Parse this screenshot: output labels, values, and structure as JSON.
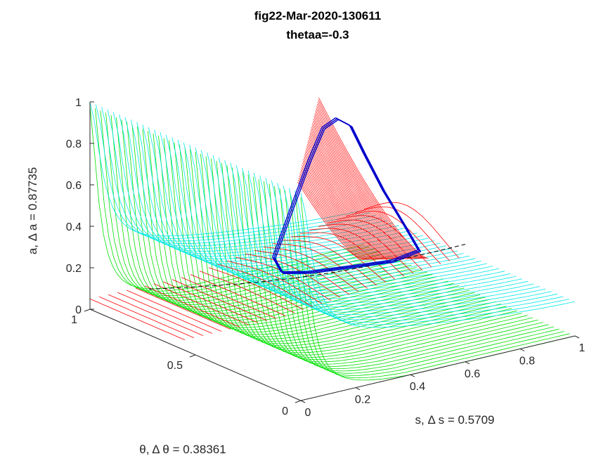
{
  "chart_data": {
    "type": "line",
    "title": "fig22-Mar-2020-130611",
    "subtitle": "thetaa=-0.3",
    "xlabel": "s, Δ s = 0.5709",
    "ylabel": "θ, Δ θ = 0.38361",
    "zlabel": "a, Δ a = 0.87735",
    "x_ticks": [
      "0",
      "0.2",
      "0.4",
      "0.6",
      "0.8",
      "1"
    ],
    "y_ticks": [
      "0",
      "0.5",
      "1"
    ],
    "z_ticks": [
      "0",
      "0.2",
      "0.4",
      "0.6",
      "0.8",
      "1"
    ],
    "xlim": [
      0,
      1
    ],
    "ylim": [
      0,
      1
    ],
    "zlim": [
      0,
      1
    ],
    "grid": false,
    "colors": {
      "green_sheet": "#00e000",
      "cyan_sheet": "#00e8e8",
      "red_sheet": "#ff0000",
      "trajectory": "#0000cc",
      "dashed": "#000000",
      "axes": "#262626"
    },
    "series": [
      {
        "kind": "surface-lines",
        "color": "green_sheet",
        "description_values": {
          "a_high": 1.0,
          "a_low": 0.0,
          "decay_s": 0.04
        }
      },
      {
        "kind": "surface-lines",
        "color": "cyan_sheet",
        "description_values": {
          "a_high": 1.0,
          "a_low": 0.22,
          "decay_s": 0.06
        }
      },
      {
        "kind": "surface-lines",
        "color": "red_sheet"
      },
      {
        "kind": "trajectory",
        "color": "trajectory",
        "points": [
          [
            0.55,
            0.55,
            0.95
          ],
          [
            0.6,
            0.55,
            0.9
          ],
          [
            0.65,
            0.55,
            0.75
          ],
          [
            0.72,
            0.55,
            0.55
          ],
          [
            0.8,
            0.55,
            0.35
          ],
          [
            0.85,
            0.55,
            0.22
          ],
          [
            0.75,
            0.55,
            0.2
          ],
          [
            0.6,
            0.55,
            0.22
          ],
          [
            0.45,
            0.55,
            0.24
          ],
          [
            0.35,
            0.55,
            0.27
          ],
          [
            0.32,
            0.55,
            0.35
          ],
          [
            0.38,
            0.55,
            0.55
          ],
          [
            0.45,
            0.55,
            0.78
          ],
          [
            0.5,
            0.55,
            0.92
          ],
          [
            0.55,
            0.55,
            0.95
          ]
        ]
      }
    ]
  }
}
